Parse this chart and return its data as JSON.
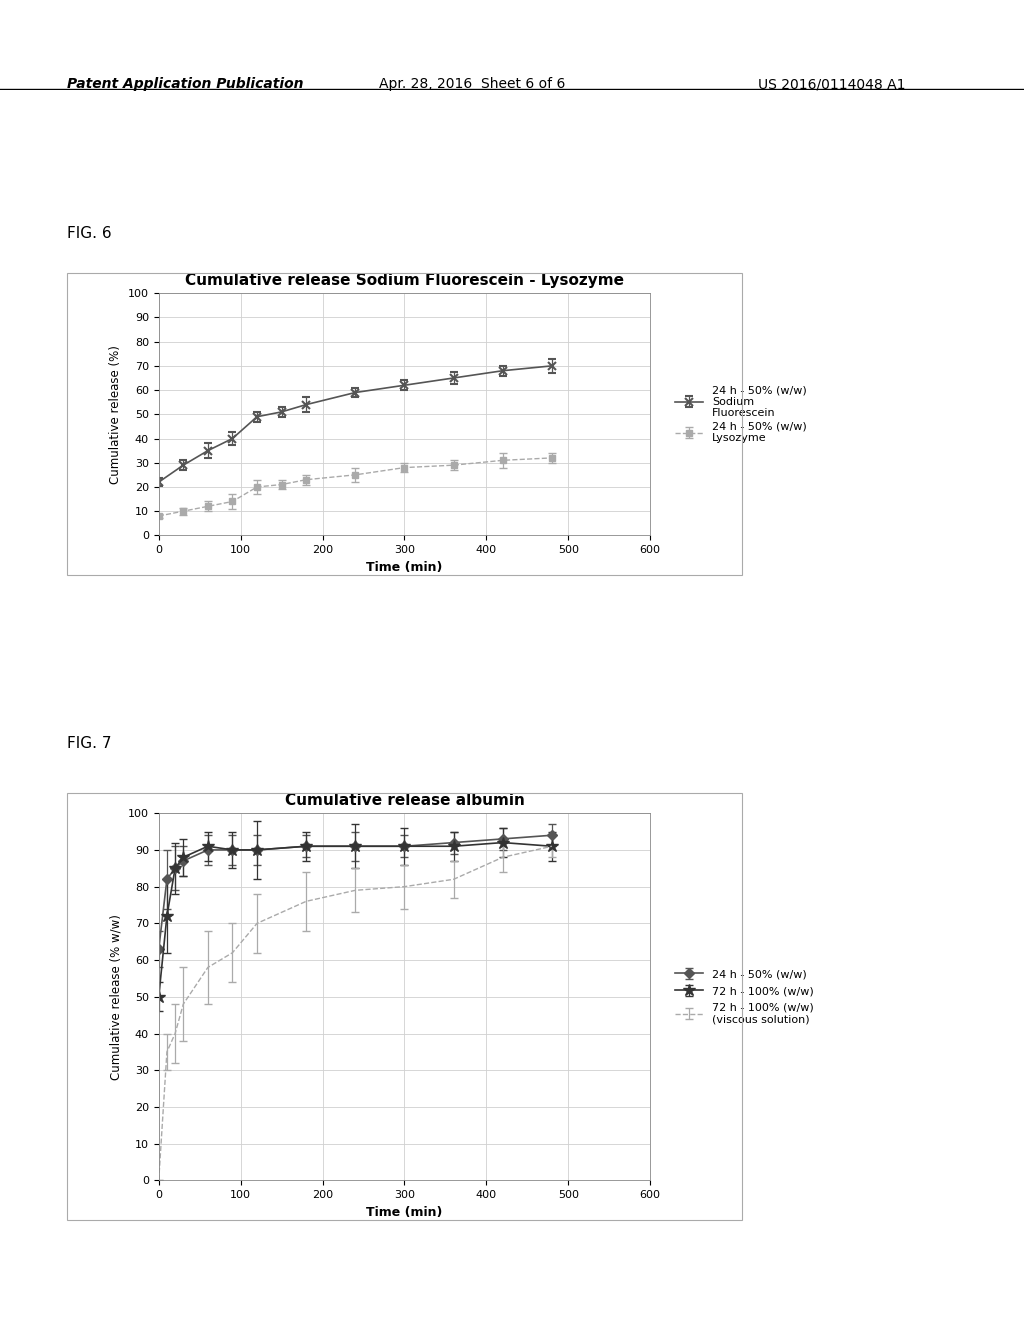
{
  "fig6": {
    "title": "Cumulative release Sodium Fluorescein - Lysozyme",
    "xlabel": "Time (min)",
    "ylabel": "Cumulative release (%)",
    "xlim": [
      0,
      600
    ],
    "ylim": [
      0,
      100
    ],
    "yticks": [
      0,
      10,
      20,
      30,
      40,
      50,
      60,
      70,
      80,
      90,
      100
    ],
    "xticks": [
      0,
      100,
      200,
      300,
      400,
      500,
      600
    ],
    "series1": {
      "label1": "24 h - 50% (w/w)",
      "label2": "Sodium",
      "label3": "Fluorescein",
      "x": [
        0,
        30,
        60,
        90,
        120,
        150,
        180,
        240,
        300,
        360,
        420,
        480
      ],
      "y": [
        22,
        29,
        35,
        40,
        49,
        51,
        54,
        59,
        62,
        65,
        68,
        70
      ],
      "yerr": [
        1.5,
        2,
        3,
        2.5,
        2,
        2,
        3,
        2,
        2,
        2.5,
        2,
        3
      ],
      "color": "#555555",
      "marker": "x",
      "linestyle": "-"
    },
    "series2": {
      "label1": "24 h - 50% (w/w)",
      "label2": "Lysozyme",
      "x": [
        0,
        30,
        60,
        90,
        120,
        150,
        180,
        240,
        300,
        360,
        420,
        480
      ],
      "y": [
        8,
        10,
        12,
        14,
        20,
        21,
        23,
        25,
        28,
        29,
        31,
        32
      ],
      "yerr": [
        1,
        1.5,
        2,
        3,
        3,
        2,
        2,
        3,
        2,
        2,
        3,
        2
      ],
      "color": "#aaaaaa",
      "marker": "s",
      "linestyle": "--"
    }
  },
  "fig7": {
    "title": "Cumulative release albumin",
    "xlabel": "Time (min)",
    "ylabel": "Cumulative release (% w/w)",
    "xlim": [
      0,
      600
    ],
    "ylim": [
      0,
      100
    ],
    "yticks": [
      0,
      10,
      20,
      30,
      40,
      50,
      60,
      70,
      80,
      90,
      100
    ],
    "xticks": [
      0,
      100,
      200,
      300,
      400,
      500,
      600
    ],
    "series1": {
      "label": "24 h - 50% (w/w)",
      "x": [
        0,
        10,
        20,
        30,
        60,
        90,
        120,
        180,
        240,
        300,
        360,
        420,
        480
      ],
      "y": [
        63,
        82,
        85,
        87,
        90,
        90,
        90,
        91,
        91,
        91,
        92,
        93,
        94
      ],
      "yerr": [
        5,
        8,
        6,
        4,
        4,
        4,
        4,
        3,
        4,
        3,
        3,
        3,
        3
      ],
      "color": "#555555",
      "marker": "D",
      "linestyle": "-"
    },
    "series2": {
      "label": "72 h - 100% (w/w)",
      "x": [
        0,
        10,
        20,
        30,
        60,
        90,
        120,
        180,
        240,
        300,
        360,
        420,
        480
      ],
      "y": [
        50,
        72,
        85,
        88,
        91,
        90,
        90,
        91,
        91,
        91,
        91,
        92,
        91
      ],
      "yerr": [
        4,
        10,
        7,
        5,
        4,
        5,
        8,
        4,
        6,
        5,
        4,
        4,
        4
      ],
      "color": "#333333",
      "marker": "*",
      "linestyle": "-"
    },
    "series3": {
      "label1": "72 h - 100% (w/w)",
      "label2": "(viscous solution)",
      "x": [
        0,
        10,
        20,
        30,
        60,
        90,
        120,
        180,
        240,
        300,
        360,
        420,
        480
      ],
      "y": [
        0,
        35,
        40,
        48,
        58,
        62,
        70,
        76,
        79,
        80,
        82,
        88,
        91
      ],
      "yerr": [
        0,
        5,
        8,
        10,
        10,
        8,
        8,
        8,
        6,
        6,
        5,
        4,
        3
      ],
      "color": "#aaaaaa",
      "marker": "None",
      "linestyle": "--"
    }
  },
  "header_text": "Patent Application Publication",
  "header_date": "Apr. 28, 2016  Sheet 6 of 6",
  "header_patent": "US 2016/0114048 A1",
  "fig6_label": "FIG. 6",
  "fig7_label": "FIG. 7",
  "background_color": "#ffffff",
  "plot_bg_color": "#ffffff",
  "grid_color": "#d0d0d0",
  "font_color": "#000000"
}
